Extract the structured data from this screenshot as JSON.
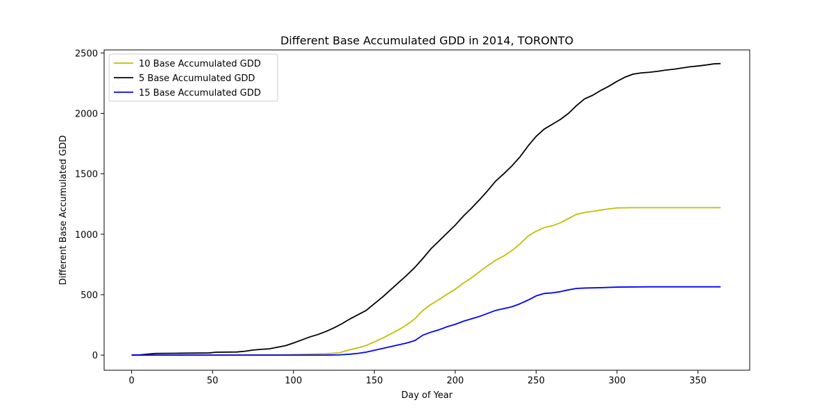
{
  "chart_data": {
    "type": "line",
    "title": "Different Base Accumulated GDD in 2014, TORONTO",
    "xlabel": "Day of Year",
    "ylabel": "Different Base Accumulated GDD",
    "xlim": [
      -17,
      382
    ],
    "ylim": [
      -125,
      2525
    ],
    "xticks": [
      0,
      50,
      100,
      150,
      200,
      250,
      300,
      350
    ],
    "yticks": [
      0,
      500,
      1000,
      1500,
      2000,
      2500
    ],
    "grid": false,
    "legend_position": "top-left",
    "series": [
      {
        "name": "10 Base Accumulated GDD",
        "color": "#bfbf00",
        "points": [
          [
            0,
            0
          ],
          [
            90,
            2
          ],
          [
            100,
            5
          ],
          [
            110,
            8
          ],
          [
            120,
            12
          ],
          [
            128,
            18
          ],
          [
            135,
            45
          ],
          [
            140,
            60
          ],
          [
            145,
            80
          ],
          [
            150,
            110
          ],
          [
            155,
            140
          ],
          [
            160,
            175
          ],
          [
            165,
            210
          ],
          [
            170,
            250
          ],
          [
            175,
            300
          ],
          [
            180,
            370
          ],
          [
            185,
            420
          ],
          [
            190,
            460
          ],
          [
            195,
            505
          ],
          [
            200,
            545
          ],
          [
            205,
            595
          ],
          [
            210,
            640
          ],
          [
            215,
            690
          ],
          [
            220,
            740
          ],
          [
            225,
            785
          ],
          [
            230,
            820
          ],
          [
            235,
            865
          ],
          [
            240,
            920
          ],
          [
            245,
            985
          ],
          [
            250,
            1025
          ],
          [
            255,
            1055
          ],
          [
            260,
            1070
          ],
          [
            265,
            1095
          ],
          [
            270,
            1130
          ],
          [
            275,
            1165
          ],
          [
            280,
            1180
          ],
          [
            285,
            1190
          ],
          [
            290,
            1200
          ],
          [
            295,
            1210
          ],
          [
            300,
            1218
          ],
          [
            310,
            1220
          ],
          [
            330,
            1220
          ],
          [
            364,
            1220
          ]
        ]
      },
      {
        "name": "5 Base Accumulated GDD",
        "color": "#000000",
        "points": [
          [
            0,
            0
          ],
          [
            5,
            2
          ],
          [
            10,
            8
          ],
          [
            15,
            14
          ],
          [
            30,
            16
          ],
          [
            48,
            18
          ],
          [
            52,
            24
          ],
          [
            65,
            26
          ],
          [
            70,
            32
          ],
          [
            75,
            42
          ],
          [
            80,
            48
          ],
          [
            85,
            52
          ],
          [
            90,
            65
          ],
          [
            95,
            78
          ],
          [
            100,
            100
          ],
          [
            105,
            125
          ],
          [
            110,
            150
          ],
          [
            115,
            170
          ],
          [
            120,
            195
          ],
          [
            125,
            225
          ],
          [
            130,
            260
          ],
          [
            135,
            300
          ],
          [
            140,
            335
          ],
          [
            145,
            370
          ],
          [
            150,
            425
          ],
          [
            155,
            480
          ],
          [
            160,
            540
          ],
          [
            165,
            600
          ],
          [
            170,
            660
          ],
          [
            175,
            725
          ],
          [
            180,
            800
          ],
          [
            185,
            880
          ],
          [
            190,
            945
          ],
          [
            195,
            1010
          ],
          [
            200,
            1075
          ],
          [
            205,
            1150
          ],
          [
            210,
            1215
          ],
          [
            215,
            1285
          ],
          [
            220,
            1360
          ],
          [
            225,
            1440
          ],
          [
            230,
            1500
          ],
          [
            235,
            1565
          ],
          [
            240,
            1640
          ],
          [
            245,
            1730
          ],
          [
            250,
            1810
          ],
          [
            255,
            1870
          ],
          [
            260,
            1910
          ],
          [
            265,
            1950
          ],
          [
            270,
            2000
          ],
          [
            275,
            2065
          ],
          [
            280,
            2120
          ],
          [
            285,
            2150
          ],
          [
            290,
            2190
          ],
          [
            295,
            2225
          ],
          [
            300,
            2265
          ],
          [
            305,
            2300
          ],
          [
            310,
            2325
          ],
          [
            315,
            2335
          ],
          [
            320,
            2340
          ],
          [
            325,
            2348
          ],
          [
            330,
            2358
          ],
          [
            335,
            2365
          ],
          [
            340,
            2375
          ],
          [
            345,
            2385
          ],
          [
            350,
            2392
          ],
          [
            355,
            2400
          ],
          [
            360,
            2410
          ],
          [
            364,
            2412
          ]
        ]
      },
      {
        "name": "15 Base Accumulated GDD",
        "color": "#0000ff",
        "points": [
          [
            0,
            0
          ],
          [
            120,
            0
          ],
          [
            128,
            2
          ],
          [
            135,
            8
          ],
          [
            140,
            15
          ],
          [
            145,
            25
          ],
          [
            150,
            40
          ],
          [
            155,
            55
          ],
          [
            160,
            70
          ],
          [
            165,
            85
          ],
          [
            170,
            100
          ],
          [
            175,
            120
          ],
          [
            180,
            165
          ],
          [
            185,
            190
          ],
          [
            190,
            210
          ],
          [
            195,
            235
          ],
          [
            200,
            255
          ],
          [
            205,
            280
          ],
          [
            210,
            300
          ],
          [
            215,
            320
          ],
          [
            220,
            345
          ],
          [
            225,
            370
          ],
          [
            230,
            385
          ],
          [
            235,
            400
          ],
          [
            240,
            425
          ],
          [
            245,
            455
          ],
          [
            250,
            490
          ],
          [
            255,
            510
          ],
          [
            260,
            515
          ],
          [
            265,
            525
          ],
          [
            270,
            540
          ],
          [
            275,
            552
          ],
          [
            280,
            555
          ],
          [
            290,
            558
          ],
          [
            300,
            563
          ],
          [
            320,
            565
          ],
          [
            364,
            565
          ]
        ]
      }
    ]
  }
}
